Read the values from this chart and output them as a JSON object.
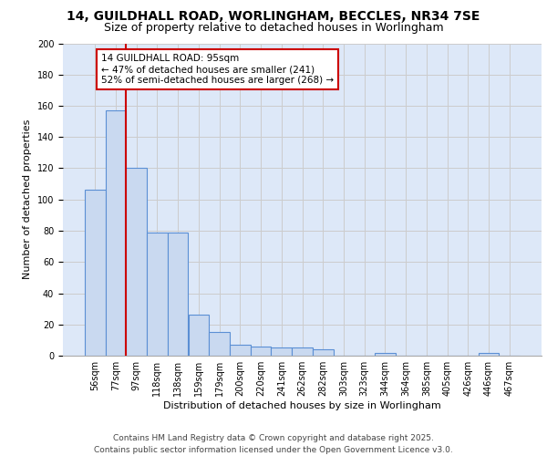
{
  "title_line1": "14, GUILDHALL ROAD, WORLINGHAM, BECCLES, NR34 7SE",
  "title_line2": "Size of property relative to detached houses in Worlingham",
  "xlabel": "Distribution of detached houses by size in Worlingham",
  "ylabel": "Number of detached properties",
  "categories": [
    "56sqm",
    "77sqm",
    "97sqm",
    "118sqm",
    "138sqm",
    "159sqm",
    "179sqm",
    "200sqm",
    "220sqm",
    "241sqm",
    "262sqm",
    "282sqm",
    "303sqm",
    "323sqm",
    "344sqm",
    "364sqm",
    "385sqm",
    "405sqm",
    "426sqm",
    "446sqm",
    "467sqm"
  ],
  "values": [
    106,
    157,
    120,
    79,
    79,
    26,
    15,
    7,
    6,
    5,
    5,
    4,
    0,
    0,
    2,
    0,
    0,
    0,
    0,
    2,
    0
  ],
  "bar_color": "#c9d9f0",
  "bar_edge_color": "#5b8fd4",
  "bar_edge_width": 0.8,
  "vline_color": "#cc0000",
  "vline_x": 1.5,
  "annotation_text": "14 GUILDHALL ROAD: 95sqm\n← 47% of detached houses are smaller (241)\n52% of semi-detached houses are larger (268) →",
  "annotation_fontsize": 7.5,
  "annotation_box_color": "white",
  "annotation_box_edge": "#cc0000",
  "ylim": [
    0,
    200
  ],
  "yticks": [
    0,
    20,
    40,
    60,
    80,
    100,
    120,
    140,
    160,
    180,
    200
  ],
  "grid_color": "#cccccc",
  "bg_color": "#dde8f8",
  "title_fontsize": 10,
  "subtitle_fontsize": 9,
  "xlabel_fontsize": 8,
  "ylabel_fontsize": 8,
  "tick_fontsize": 7,
  "footer_line1": "Contains HM Land Registry data © Crown copyright and database right 2025.",
  "footer_line2": "Contains public sector information licensed under the Open Government Licence v3.0.",
  "footer_fontsize": 6.5
}
